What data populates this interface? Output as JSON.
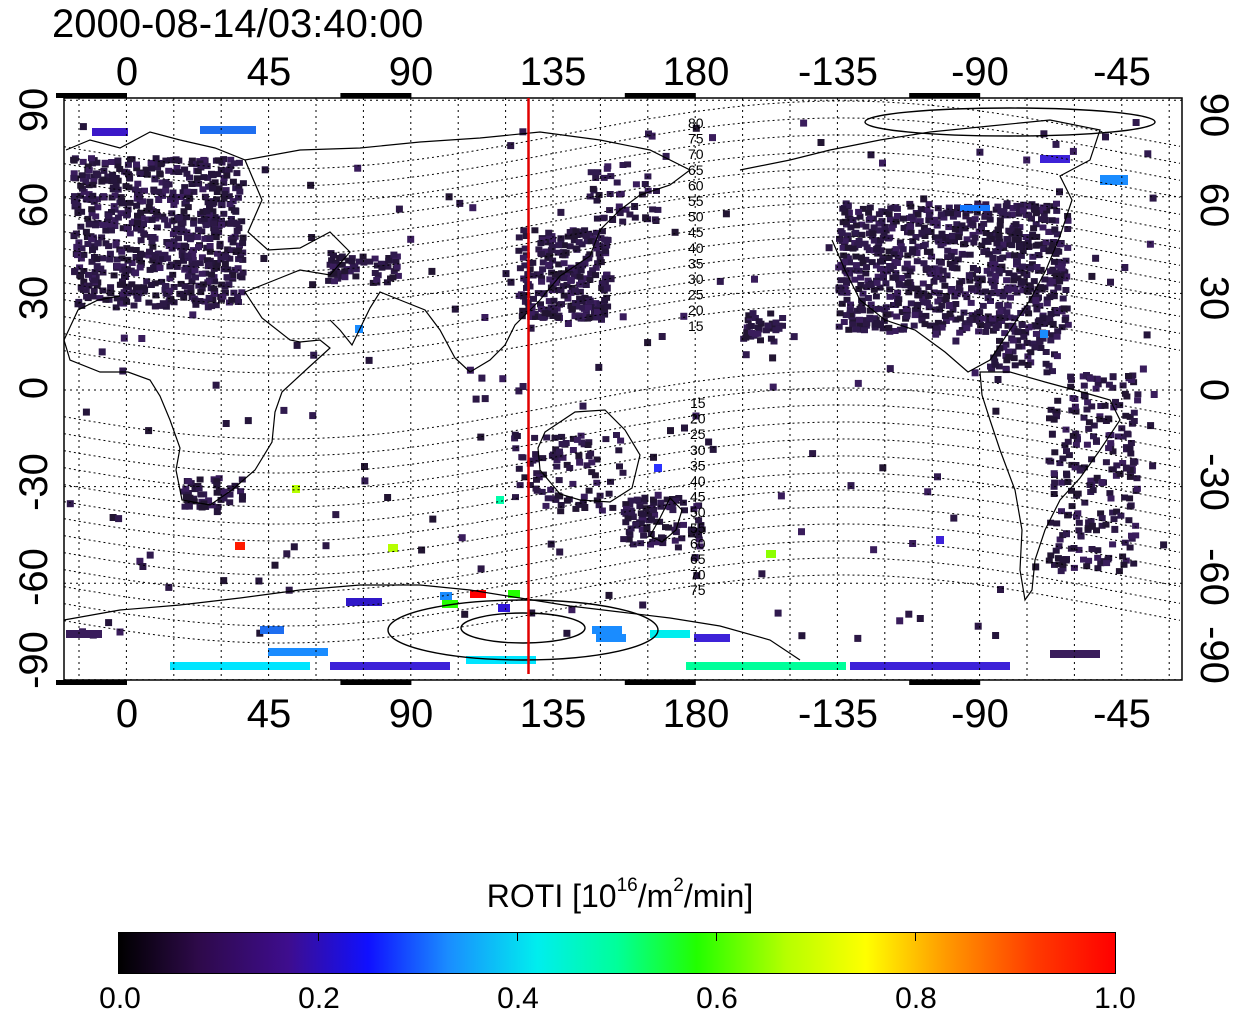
{
  "title": "2000-08-14/03:40:00",
  "map": {
    "top_axis_labels": [
      "0",
      "45",
      "90",
      "135",
      "180",
      "-135",
      "-90",
      "-45"
    ],
    "bottom_axis_labels": [
      "0",
      "45",
      "90",
      "135",
      "180",
      "-135",
      "-90",
      "-45"
    ],
    "left_axis_labels": [
      "90",
      "60",
      "30",
      "0",
      "-30",
      "-60",
      "-90"
    ],
    "right_axis_labels": [
      "90",
      "60",
      "30",
      "0",
      "-30",
      "-60",
      "-90"
    ],
    "north_contour_labels": [
      "80",
      "75",
      "70",
      "65",
      "60",
      "55",
      "50",
      "45",
      "40",
      "35",
      "30",
      "25",
      "20",
      "15"
    ],
    "south_contour_labels": [
      "15",
      "20",
      "25",
      "30",
      "35",
      "40",
      "45",
      "50",
      "55",
      "60",
      "65",
      "70",
      "75"
    ],
    "meridian_marker_longitude": 127,
    "meridian_marker_color": "#e00000"
  },
  "colorbar": {
    "title_prefix": "ROTI  [10",
    "title_sup1": "16",
    "title_mid": "/m",
    "title_sup2": "2",
    "title_suffix": "/min]",
    "tick_labels": [
      "0.0",
      "0.2",
      "0.4",
      "0.6",
      "0.8",
      "1.0"
    ],
    "range": [
      0.0,
      1.0
    ]
  }
}
